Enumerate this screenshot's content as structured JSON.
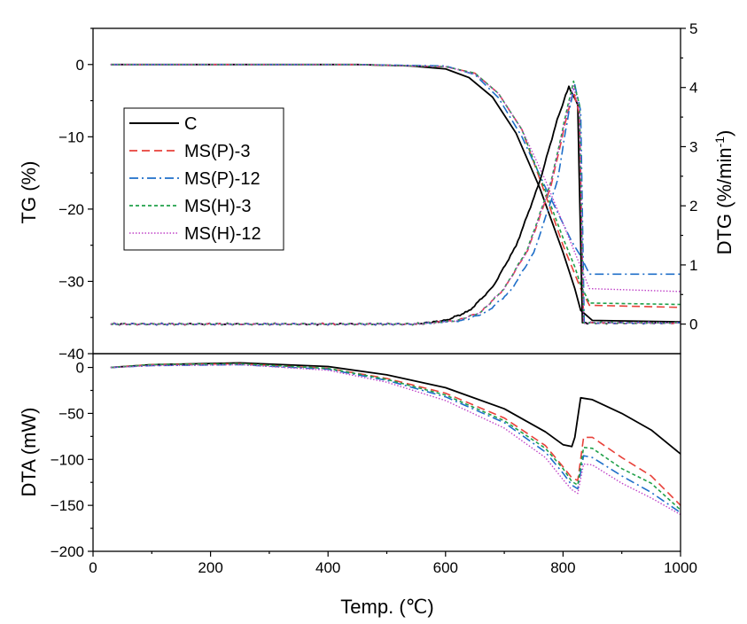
{
  "chart_data": [
    {
      "type": "line",
      "panel": "top",
      "xlabel": "",
      "ylabel": "TG (%)",
      "y2label": "DTG (%/min",
      "y2label_sup": "-1",
      "y2label_close": ")",
      "xlim": [
        0,
        1000
      ],
      "ylim": [
        -40,
        5
      ],
      "y2lim": [
        -0.5,
        5
      ],
      "yticks": [
        0,
        -10,
        -20,
        -30,
        -40
      ],
      "y2ticks": [
        0,
        1,
        2,
        3,
        4,
        5
      ],
      "grid": false,
      "legend_position": "upper-left",
      "legend": [
        "C",
        "MS(P)-3",
        "MS(P)-12",
        "MS(H)-3",
        "MS(H)-12"
      ],
      "tg_series": [
        {
          "name": "C",
          "color": "#000000",
          "dash": "solid",
          "x": [
            30,
            450,
            540,
            600,
            640,
            680,
            720,
            760,
            800,
            820,
            830,
            850,
            1000
          ],
          "y": [
            0,
            0,
            -0.2,
            -0.6,
            -1.8,
            -4.5,
            -9.5,
            -17,
            -26,
            -31,
            -34,
            -35.4,
            -35.6
          ]
        },
        {
          "name": "MS(P)-3",
          "color": "#e8413a",
          "dash": "dashed",
          "x": [
            30,
            450,
            600,
            650,
            690,
            730,
            770,
            800,
            820,
            830,
            845,
            1000
          ],
          "y": [
            0,
            0,
            -0.3,
            -1.2,
            -4,
            -9,
            -18,
            -25,
            -29,
            -31,
            -33.3,
            -33.6
          ]
        },
        {
          "name": "MS(P)-12",
          "color": "#1f6fc9",
          "dash": "dashdot",
          "x": [
            30,
            450,
            600,
            650,
            690,
            730,
            770,
            800,
            815,
            830,
            845,
            1000
          ],
          "y": [
            0,
            0,
            -0.2,
            -1.4,
            -4.6,
            -10,
            -17,
            -22,
            -24.5,
            -26.5,
            -29,
            -29
          ]
        },
        {
          "name": "MS(H)-3",
          "color": "#20a04a",
          "dash": "dotted",
          "x": [
            30,
            450,
            600,
            650,
            690,
            730,
            770,
            800,
            820,
            830,
            845,
            1000
          ],
          "y": [
            0,
            0,
            -0.3,
            -1.2,
            -4,
            -9,
            -17.5,
            -24,
            -28,
            -30.5,
            -33,
            -33.2
          ]
        },
        {
          "name": "MS(H)-12",
          "color": "#c044c8",
          "dash": "dotted-fine",
          "x": [
            30,
            450,
            600,
            650,
            690,
            730,
            770,
            800,
            820,
            830,
            845,
            1000
          ],
          "y": [
            0,
            0,
            -0.3,
            -1.3,
            -4,
            -9,
            -16,
            -22,
            -26,
            -28,
            -31,
            -31.4
          ]
        }
      ],
      "dtg_series": [
        {
          "name": "C",
          "x": [
            30,
            550,
            600,
            640,
            680,
            720,
            760,
            790,
            810,
            825,
            833,
            850,
            1000
          ],
          "y": [
            0,
            0,
            0.06,
            0.22,
            0.62,
            1.32,
            2.4,
            3.45,
            4.02,
            3.7,
            0.02,
            0.02,
            0.02
          ]
        },
        {
          "name": "MS(P)-3",
          "x": [
            30,
            550,
            620,
            660,
            700,
            740,
            780,
            805,
            818,
            828,
            835,
            850,
            1000
          ],
          "y": [
            0,
            0,
            0.06,
            0.2,
            0.6,
            1.25,
            2.35,
            3.45,
            3.92,
            3.55,
            0.02,
            0.02,
            0.02
          ]
        },
        {
          "name": "MS(P)-12",
          "x": [
            30,
            550,
            630,
            670,
            710,
            750,
            790,
            810,
            820,
            830,
            836,
            850,
            1000
          ],
          "y": [
            0,
            0,
            0.06,
            0.2,
            0.55,
            1.2,
            2.4,
            3.6,
            4.05,
            3.6,
            0.02,
            0.02,
            0.02
          ]
        },
        {
          "name": "MS(H)-3",
          "x": [
            30,
            550,
            620,
            660,
            700,
            740,
            780,
            805,
            818,
            828,
            835,
            850,
            1000
          ],
          "y": [
            0,
            0,
            0.06,
            0.2,
            0.6,
            1.28,
            2.42,
            3.55,
            4.1,
            3.7,
            0.02,
            0.02,
            0.02
          ]
        },
        {
          "name": "MS(H)-12",
          "x": [
            30,
            550,
            620,
            660,
            700,
            740,
            780,
            805,
            818,
            828,
            835,
            850,
            1000
          ],
          "y": [
            0,
            0,
            0.06,
            0.2,
            0.6,
            1.25,
            2.4,
            3.5,
            4.02,
            3.6,
            0.02,
            0.02,
            0.02
          ]
        }
      ]
    },
    {
      "type": "line",
      "panel": "bottom",
      "xlabel": "Temp. (℃)",
      "ylabel": "DTA (mW)",
      "xlim": [
        0,
        1000
      ],
      "ylim": [
        -200,
        15
      ],
      "xticks": [
        0,
        200,
        400,
        600,
        800,
        1000
      ],
      "yticks": [
        0,
        -50,
        -100,
        -150,
        -200
      ],
      "grid": false,
      "series": [
        {
          "name": "C",
          "x": [
            30,
            100,
            250,
            400,
            500,
            600,
            700,
            770,
            800,
            815,
            820,
            830,
            850,
            900,
            950,
            1000
          ],
          "y": [
            0,
            3,
            5,
            1,
            -8,
            -22,
            -45,
            -70,
            -84,
            -86,
            -76,
            -33,
            -35,
            -50,
            -68,
            -94
          ]
        },
        {
          "name": "MS(P)-3",
          "x": [
            30,
            100,
            250,
            400,
            500,
            600,
            700,
            770,
            800,
            815,
            825,
            835,
            850,
            900,
            950,
            1000
          ],
          "y": [
            0,
            3,
            4,
            -1,
            -12,
            -28,
            -55,
            -85,
            -108,
            -120,
            -123,
            -76,
            -76,
            -98,
            -118,
            -150
          ]
        },
        {
          "name": "MS(P)-12",
          "x": [
            30,
            100,
            250,
            400,
            500,
            600,
            700,
            770,
            800,
            815,
            825,
            835,
            850,
            900,
            950,
            1000
          ],
          "y": [
            0,
            2,
            3,
            -2,
            -14,
            -32,
            -60,
            -92,
            -115,
            -128,
            -132,
            -96,
            -98,
            -118,
            -136,
            -158
          ]
        },
        {
          "name": "MS(H)-3",
          "x": [
            30,
            100,
            250,
            400,
            500,
            600,
            700,
            770,
            800,
            815,
            825,
            835,
            850,
            900,
            950,
            1000
          ],
          "y": [
            0,
            3,
            4,
            -1,
            -13,
            -30,
            -58,
            -88,
            -110,
            -124,
            -128,
            -87,
            -88,
            -110,
            -126,
            -155
          ]
        },
        {
          "name": "MS(H)-12",
          "x": [
            30,
            100,
            250,
            400,
            500,
            600,
            700,
            770,
            800,
            815,
            825,
            835,
            850,
            900,
            950,
            1000
          ],
          "y": [
            0,
            2,
            3,
            -3,
            -16,
            -36,
            -66,
            -98,
            -122,
            -133,
            -137,
            -105,
            -106,
            -126,
            -142,
            -160
          ]
        }
      ]
    }
  ]
}
